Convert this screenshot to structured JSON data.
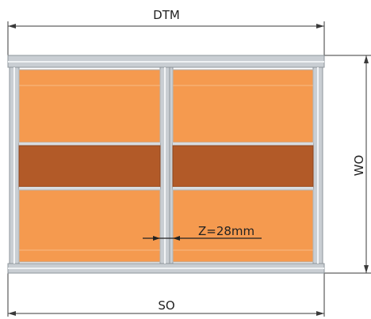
{
  "dimensions": {
    "top_label": "DTM",
    "bottom_label": "SO",
    "right_label": "WO",
    "gap_label": "Z=28mm"
  },
  "colors": {
    "panel_orange": "#f59a4f",
    "panel_brown": "#b25a28",
    "frame_gray": "#c9ced3",
    "frame_light": "#e6e9ec",
    "line": "#3a3a3a"
  }
}
